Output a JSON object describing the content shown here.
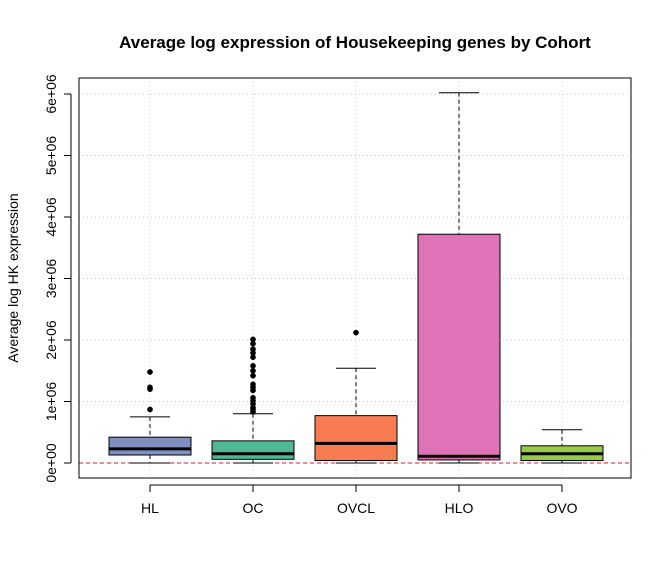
{
  "chart_data": {
    "type": "boxplot",
    "title": "Average log expression of Housekeeping genes by Cohort",
    "xlabel": "",
    "ylabel": "Average log HK expression",
    "ylim": [
      -200000,
      6200000
    ],
    "yticks": [
      0,
      1000000,
      2000000,
      3000000,
      4000000,
      5000000,
      6000000
    ],
    "ytick_labels": [
      "0e+00",
      "1e+06",
      "2e+06",
      "3e+06",
      "4e+06",
      "5e+06",
      "6e+06"
    ],
    "grid": true,
    "reference_line": {
      "y": 0,
      "color": "#e31a1c",
      "style": "dashed"
    },
    "categories": [
      "HL",
      "OC",
      "OVCL",
      "HLO",
      "OVO"
    ],
    "boxes": [
      {
        "name": "HL",
        "color": "#7f8fc2",
        "whisker_low": 0,
        "q1": 130000,
        "median": 230000,
        "q3": 420000,
        "whisker_high": 750000,
        "outliers": [
          870000,
          1200000,
          1230000,
          1480000
        ]
      },
      {
        "name": "OC",
        "color": "#4fb995",
        "whisker_low": 0,
        "q1": 60000,
        "median": 150000,
        "q3": 360000,
        "whisker_high": 800000,
        "outliers": [
          830000,
          870000,
          900000,
          960000,
          1010000,
          1060000,
          1180000,
          1230000,
          1280000,
          1420000,
          1500000,
          1580000,
          1720000,
          1790000,
          1850000,
          1940000,
          2010000
        ]
      },
      {
        "name": "OVCL",
        "color": "#f87c52",
        "whisker_low": 0,
        "q1": 40000,
        "median": 320000,
        "q3": 770000,
        "whisker_high": 1540000,
        "outliers": [
          2120000
        ]
      },
      {
        "name": "HLO",
        "color": "#df73b8",
        "whisker_low": 0,
        "q1": 50000,
        "median": 110000,
        "q3": 3720000,
        "whisker_high": 6020000,
        "outliers": []
      },
      {
        "name": "OVO",
        "color": "#97cb47",
        "whisker_low": 0,
        "q1": 40000,
        "median": 150000,
        "q3": 280000,
        "whisker_high": 540000,
        "outliers": []
      }
    ]
  }
}
